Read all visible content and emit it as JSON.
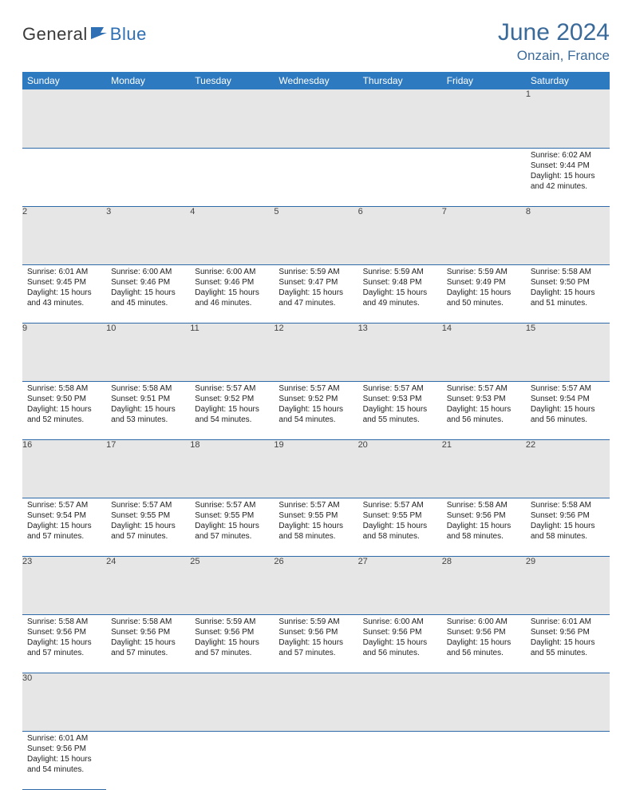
{
  "brand": {
    "part1": "General",
    "part2": "Blue"
  },
  "title": "June 2024",
  "location": "Onzain, France",
  "colors": {
    "header_bg": "#2e7ac0",
    "header_text": "#ffffff",
    "daynum_bg": "#e6e6e6",
    "title_color": "#3a6a9a",
    "rule_color": "#2e6aa8"
  },
  "weekdays": [
    "Sunday",
    "Monday",
    "Tuesday",
    "Wednesday",
    "Thursday",
    "Friday",
    "Saturday"
  ],
  "weeks": [
    [
      null,
      null,
      null,
      null,
      null,
      null,
      {
        "n": "1",
        "sr": "6:02 AM",
        "ss": "9:44 PM",
        "dh": "15",
        "dm": "42"
      }
    ],
    [
      {
        "n": "2",
        "sr": "6:01 AM",
        "ss": "9:45 PM",
        "dh": "15",
        "dm": "43"
      },
      {
        "n": "3",
        "sr": "6:00 AM",
        "ss": "9:46 PM",
        "dh": "15",
        "dm": "45"
      },
      {
        "n": "4",
        "sr": "6:00 AM",
        "ss": "9:46 PM",
        "dh": "15",
        "dm": "46"
      },
      {
        "n": "5",
        "sr": "5:59 AM",
        "ss": "9:47 PM",
        "dh": "15",
        "dm": "47"
      },
      {
        "n": "6",
        "sr": "5:59 AM",
        "ss": "9:48 PM",
        "dh": "15",
        "dm": "49"
      },
      {
        "n": "7",
        "sr": "5:59 AM",
        "ss": "9:49 PM",
        "dh": "15",
        "dm": "50"
      },
      {
        "n": "8",
        "sr": "5:58 AM",
        "ss": "9:50 PM",
        "dh": "15",
        "dm": "51"
      }
    ],
    [
      {
        "n": "9",
        "sr": "5:58 AM",
        "ss": "9:50 PM",
        "dh": "15",
        "dm": "52"
      },
      {
        "n": "10",
        "sr": "5:58 AM",
        "ss": "9:51 PM",
        "dh": "15",
        "dm": "53"
      },
      {
        "n": "11",
        "sr": "5:57 AM",
        "ss": "9:52 PM",
        "dh": "15",
        "dm": "54"
      },
      {
        "n": "12",
        "sr": "5:57 AM",
        "ss": "9:52 PM",
        "dh": "15",
        "dm": "54"
      },
      {
        "n": "13",
        "sr": "5:57 AM",
        "ss": "9:53 PM",
        "dh": "15",
        "dm": "55"
      },
      {
        "n": "14",
        "sr": "5:57 AM",
        "ss": "9:53 PM",
        "dh": "15",
        "dm": "56"
      },
      {
        "n": "15",
        "sr": "5:57 AM",
        "ss": "9:54 PM",
        "dh": "15",
        "dm": "56"
      }
    ],
    [
      {
        "n": "16",
        "sr": "5:57 AM",
        "ss": "9:54 PM",
        "dh": "15",
        "dm": "57"
      },
      {
        "n": "17",
        "sr": "5:57 AM",
        "ss": "9:55 PM",
        "dh": "15",
        "dm": "57"
      },
      {
        "n": "18",
        "sr": "5:57 AM",
        "ss": "9:55 PM",
        "dh": "15",
        "dm": "57"
      },
      {
        "n": "19",
        "sr": "5:57 AM",
        "ss": "9:55 PM",
        "dh": "15",
        "dm": "58"
      },
      {
        "n": "20",
        "sr": "5:57 AM",
        "ss": "9:55 PM",
        "dh": "15",
        "dm": "58"
      },
      {
        "n": "21",
        "sr": "5:58 AM",
        "ss": "9:56 PM",
        "dh": "15",
        "dm": "58"
      },
      {
        "n": "22",
        "sr": "5:58 AM",
        "ss": "9:56 PM",
        "dh": "15",
        "dm": "58"
      }
    ],
    [
      {
        "n": "23",
        "sr": "5:58 AM",
        "ss": "9:56 PM",
        "dh": "15",
        "dm": "57"
      },
      {
        "n": "24",
        "sr": "5:58 AM",
        "ss": "9:56 PM",
        "dh": "15",
        "dm": "57"
      },
      {
        "n": "25",
        "sr": "5:59 AM",
        "ss": "9:56 PM",
        "dh": "15",
        "dm": "57"
      },
      {
        "n": "26",
        "sr": "5:59 AM",
        "ss": "9:56 PM",
        "dh": "15",
        "dm": "57"
      },
      {
        "n": "27",
        "sr": "6:00 AM",
        "ss": "9:56 PM",
        "dh": "15",
        "dm": "56"
      },
      {
        "n": "28",
        "sr": "6:00 AM",
        "ss": "9:56 PM",
        "dh": "15",
        "dm": "56"
      },
      {
        "n": "29",
        "sr": "6:01 AM",
        "ss": "9:56 PM",
        "dh": "15",
        "dm": "55"
      }
    ],
    [
      {
        "n": "30",
        "sr": "6:01 AM",
        "ss": "9:56 PM",
        "dh": "15",
        "dm": "54"
      },
      null,
      null,
      null,
      null,
      null,
      null
    ]
  ],
  "labels": {
    "sunrise": "Sunrise:",
    "sunset": "Sunset:",
    "daylight1": "Daylight:",
    "hours_word": "hours",
    "and_word": "and",
    "minutes_word": "minutes."
  }
}
